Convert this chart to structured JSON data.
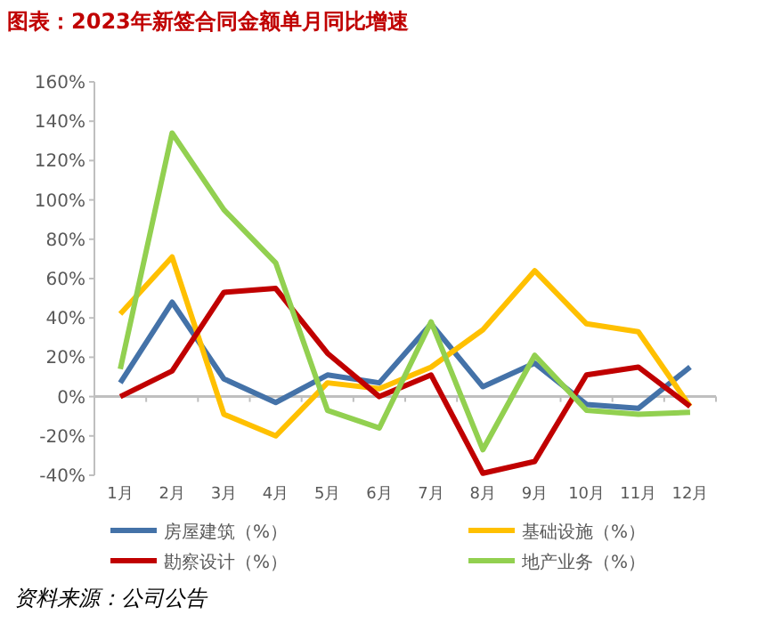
{
  "chart_data": {
    "type": "line",
    "title": "图表：2023年新签合同金额单月同比增速",
    "categories": [
      "1月",
      "2月",
      "3月",
      "4月",
      "5月",
      "6月",
      "7月",
      "8月",
      "9月",
      "10月",
      "11月",
      "12月"
    ],
    "series": [
      {
        "name": "房屋建筑（%）",
        "color": "#4472a8",
        "values": [
          7,
          48,
          9,
          -3,
          11,
          7,
          37,
          5,
          17,
          -4,
          -6,
          15
        ]
      },
      {
        "name": "基础设施（%）",
        "color": "#ffc000",
        "values": [
          42,
          71,
          -9,
          -20,
          7,
          4,
          15,
          34,
          64,
          37,
          33,
          -5
        ]
      },
      {
        "name": "勘察设计（%）",
        "color": "#c00000",
        "values": [
          0,
          13,
          53,
          55,
          22,
          0,
          11,
          -39,
          -33,
          11,
          15,
          -5
        ]
      },
      {
        "name": "地产业务（%）",
        "color": "#92d050",
        "values": [
          14,
          134,
          95,
          68,
          -7,
          -16,
          38,
          -27,
          21,
          -7,
          -9,
          -8
        ]
      }
    ],
    "ylim": [
      -40,
      160
    ],
    "yticks": [
      {
        "value": -40,
        "label": "-40%"
      },
      {
        "value": -20,
        "label": "-20%"
      },
      {
        "value": 0,
        "label": "0%"
      },
      {
        "value": 20,
        "label": "20%"
      },
      {
        "value": 40,
        "label": "40%"
      },
      {
        "value": 60,
        "label": "60%"
      },
      {
        "value": 80,
        "label": "80%"
      },
      {
        "value": 100,
        "label": "100%"
      },
      {
        "value": 120,
        "label": "120%"
      },
      {
        "value": 140,
        "label": "140%"
      },
      {
        "value": 160,
        "label": "160%"
      }
    ],
    "legend": "bottom",
    "marker": "none",
    "line_style": "solid",
    "annotations": [
      "资料来源：公司公告"
    ]
  }
}
